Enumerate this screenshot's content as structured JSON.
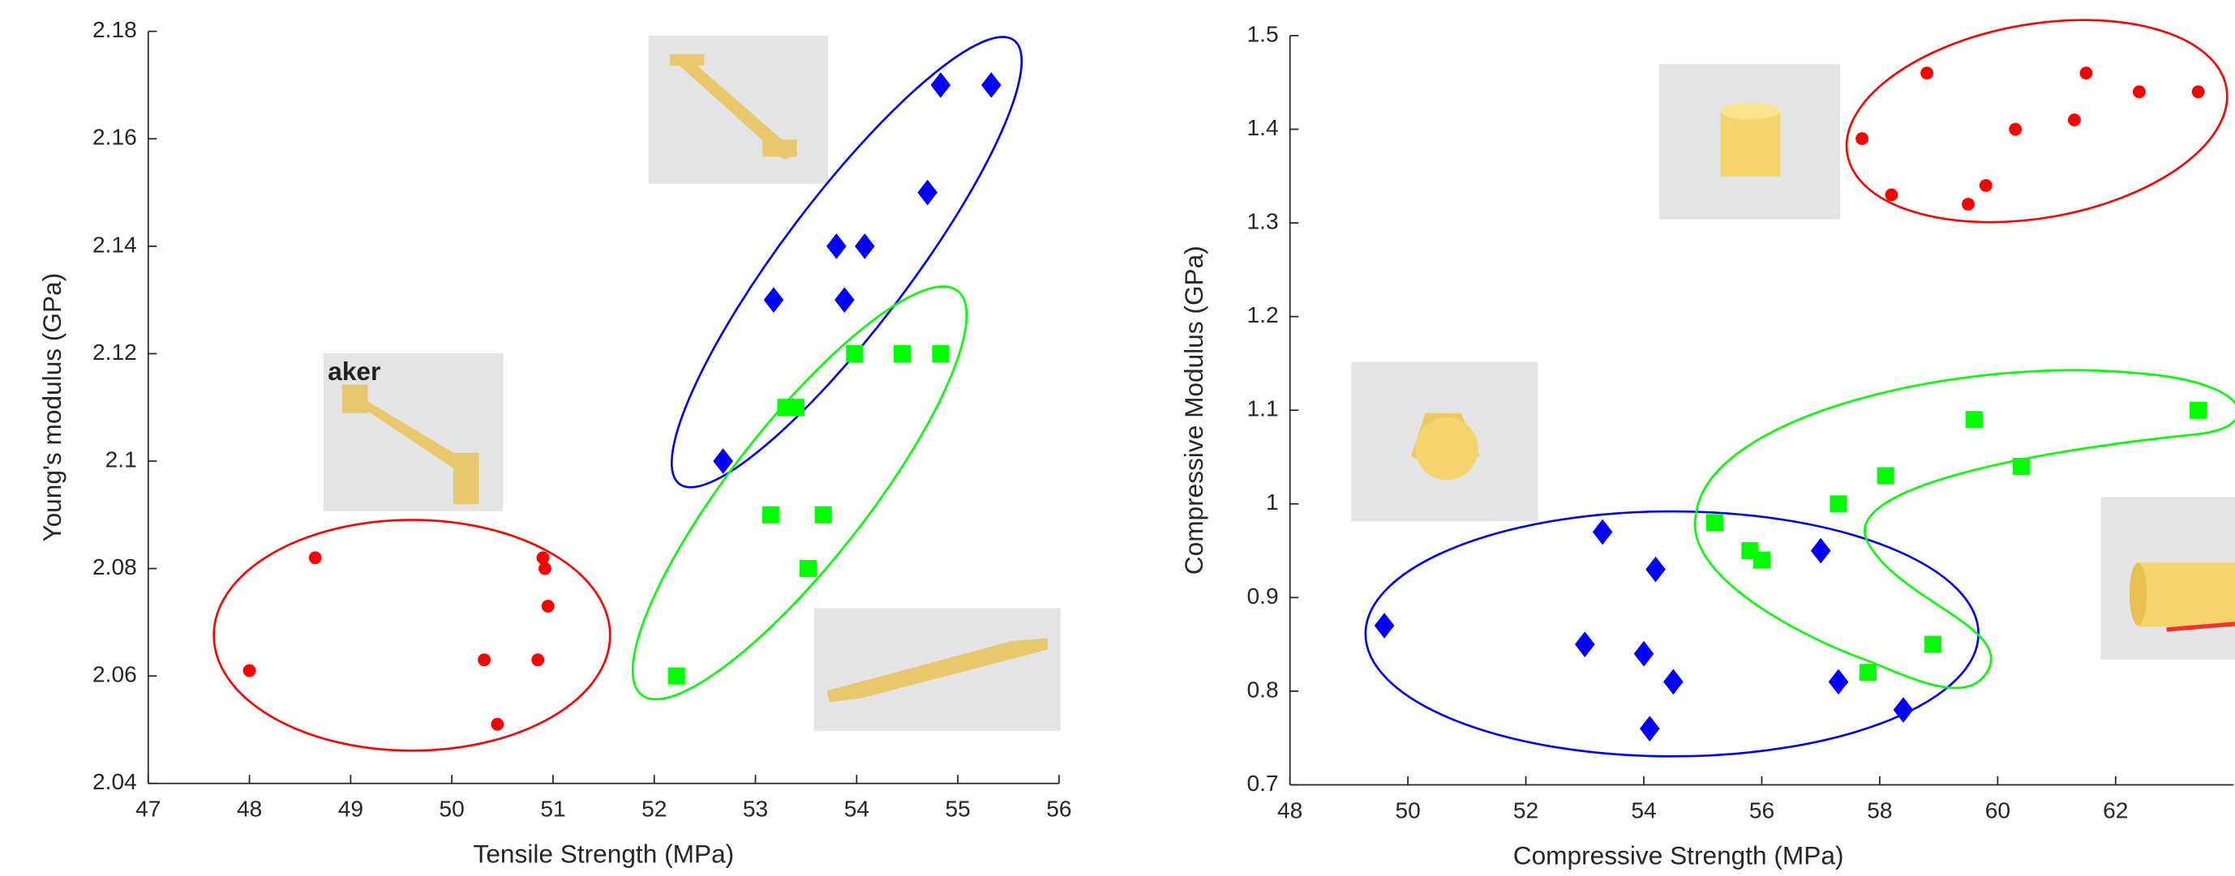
{
  "chart_data": [
    {
      "type": "scatter",
      "x_label": "Tensile Strength (MPa)",
      "y_label": "Young's modulus (GPa)",
      "xlim": [
        47,
        56
      ],
      "ylim": [
        2.04,
        2.18
      ],
      "xticks": [
        47,
        48,
        49,
        50,
        51,
        52,
        53,
        54,
        55,
        56
      ],
      "yticks": [
        2.04,
        2.06,
        2.08,
        2.1,
        2.12,
        2.14,
        2.16,
        2.18
      ],
      "series": [
        {
          "color": "#ff0000",
          "marker": "circle",
          "x": [
            48.0,
            48.65,
            50.32,
            50.45,
            50.85,
            50.9,
            50.92,
            50.95
          ],
          "values": [
            2.061,
            2.082,
            2.063,
            2.051,
            2.063,
            2.082,
            2.08,
            2.073
          ]
        },
        {
          "color": "#0000ff",
          "marker": "diamond",
          "x": [
            52.68,
            53.18,
            53.8,
            53.88,
            54.08,
            54.7,
            54.83,
            55.33
          ],
          "values": [
            2.1,
            2.13,
            2.14,
            2.13,
            2.14,
            2.15,
            2.17,
            2.17
          ]
        },
        {
          "color": "#00ff00",
          "marker": "square",
          "x": [
            52.22,
            53.15,
            53.3,
            53.4,
            53.52,
            53.67,
            53.98,
            54.45,
            54.83
          ],
          "values": [
            2.06,
            2.09,
            2.11,
            2.11,
            2.08,
            2.09,
            2.12,
            2.12,
            2.12
          ]
        }
      ]
    },
    {
      "type": "scatter",
      "x_label": "Compressive Strength (MPa)",
      "y_label": "Compressive Modulus (GPa)",
      "xlim": [
        48,
        64
      ],
      "ylim": [
        0.7,
        1.5
      ],
      "xticks": [
        48,
        50,
        52,
        54,
        56,
        58,
        60,
        62
      ],
      "yticks": [
        0.7,
        0.8,
        0.9,
        1,
        1.1,
        1.2,
        1.3,
        1.4,
        1.5
      ],
      "series": [
        {
          "color": "#ff0000",
          "marker": "circle",
          "x": [
            57.7,
            58.2,
            58.8,
            59.5,
            59.8,
            60.3,
            61.3,
            61.5,
            62.4,
            63.4
          ],
          "values": [
            1.39,
            1.33,
            1.46,
            1.32,
            1.34,
            1.4,
            1.41,
            1.46,
            1.44,
            1.44
          ]
        },
        {
          "color": "#0000ff",
          "marker": "diamond",
          "x": [
            49.6,
            53.0,
            53.3,
            54.0,
            54.1,
            54.2,
            54.5,
            57.0,
            57.3,
            58.4
          ],
          "values": [
            0.87,
            0.85,
            0.97,
            0.84,
            0.76,
            0.93,
            0.81,
            0.95,
            0.81,
            0.78
          ]
        },
        {
          "color": "#00ff00",
          "marker": "square",
          "x": [
            55.2,
            55.8,
            56.0,
            57.3,
            57.8,
            58.1,
            58.9,
            59.6,
            60.4,
            63.4
          ],
          "values": [
            0.98,
            0.95,
            0.94,
            1.0,
            0.82,
            1.03,
            0.85,
            1.09,
            1.04,
            1.1
          ]
        }
      ]
    }
  ]
}
